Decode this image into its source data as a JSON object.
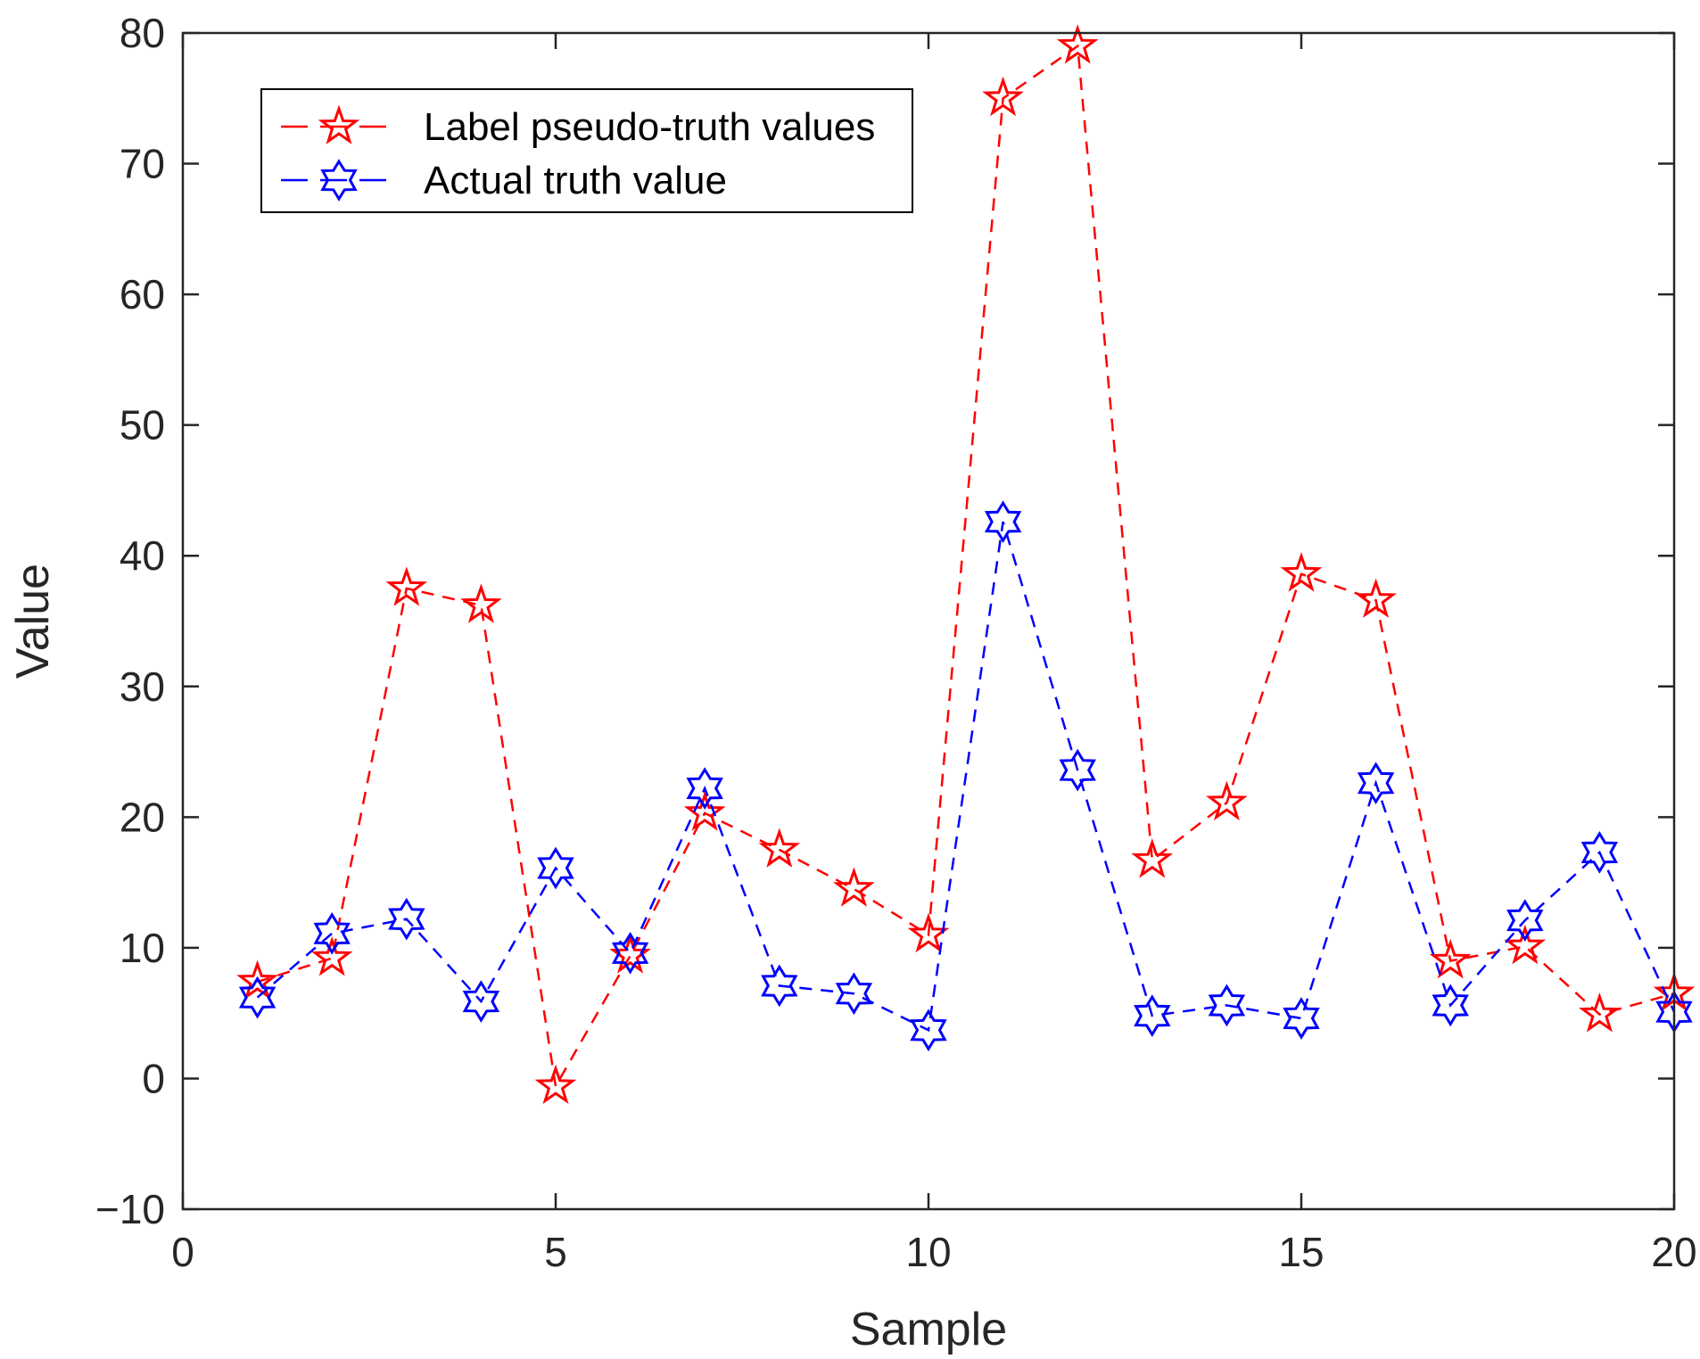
{
  "chart_data": {
    "type": "line",
    "title": "",
    "xlabel": "Sample",
    "ylabel": "Value",
    "xlim": [
      0,
      20
    ],
    "ylim": [
      -10,
      80
    ],
    "xticks": [
      0,
      5,
      10,
      15,
      20
    ],
    "yticks": [
      -10,
      0,
      10,
      20,
      30,
      40,
      50,
      60,
      70,
      80
    ],
    "xtick_labels": [
      "0",
      "5",
      "10",
      "15",
      "20"
    ],
    "ytick_labels": [
      "−10",
      "0",
      "10",
      "20",
      "30",
      "40",
      "50",
      "60",
      "70",
      "80"
    ],
    "grid": false,
    "legend_position": "top-left",
    "x": [
      1,
      2,
      3,
      4,
      5,
      6,
      7,
      8,
      9,
      10,
      11,
      12,
      13,
      14,
      15,
      16,
      17,
      18,
      19,
      20
    ],
    "series": [
      {
        "name": "Label pseudo-truth values",
        "color": "#ff0000",
        "marker": "pentagram",
        "line_style": "dashed",
        "values": [
          7.4,
          9.2,
          37.5,
          36.2,
          -0.6,
          9.4,
          20.3,
          17.5,
          14.5,
          11.0,
          75.0,
          79.0,
          16.7,
          21.1,
          38.6,
          36.6,
          9.0,
          10.1,
          4.9,
          6.5
        ]
      },
      {
        "name": "Actual truth value",
        "color": "#0000ff",
        "marker": "hexagram",
        "line_style": "dashed",
        "values": [
          6.2,
          11.1,
          12.2,
          5.9,
          16.1,
          9.6,
          22.2,
          7.1,
          6.5,
          3.7,
          42.6,
          23.6,
          4.8,
          5.6,
          4.6,
          22.6,
          5.6,
          12.1,
          17.3,
          5.1
        ]
      }
    ]
  }
}
